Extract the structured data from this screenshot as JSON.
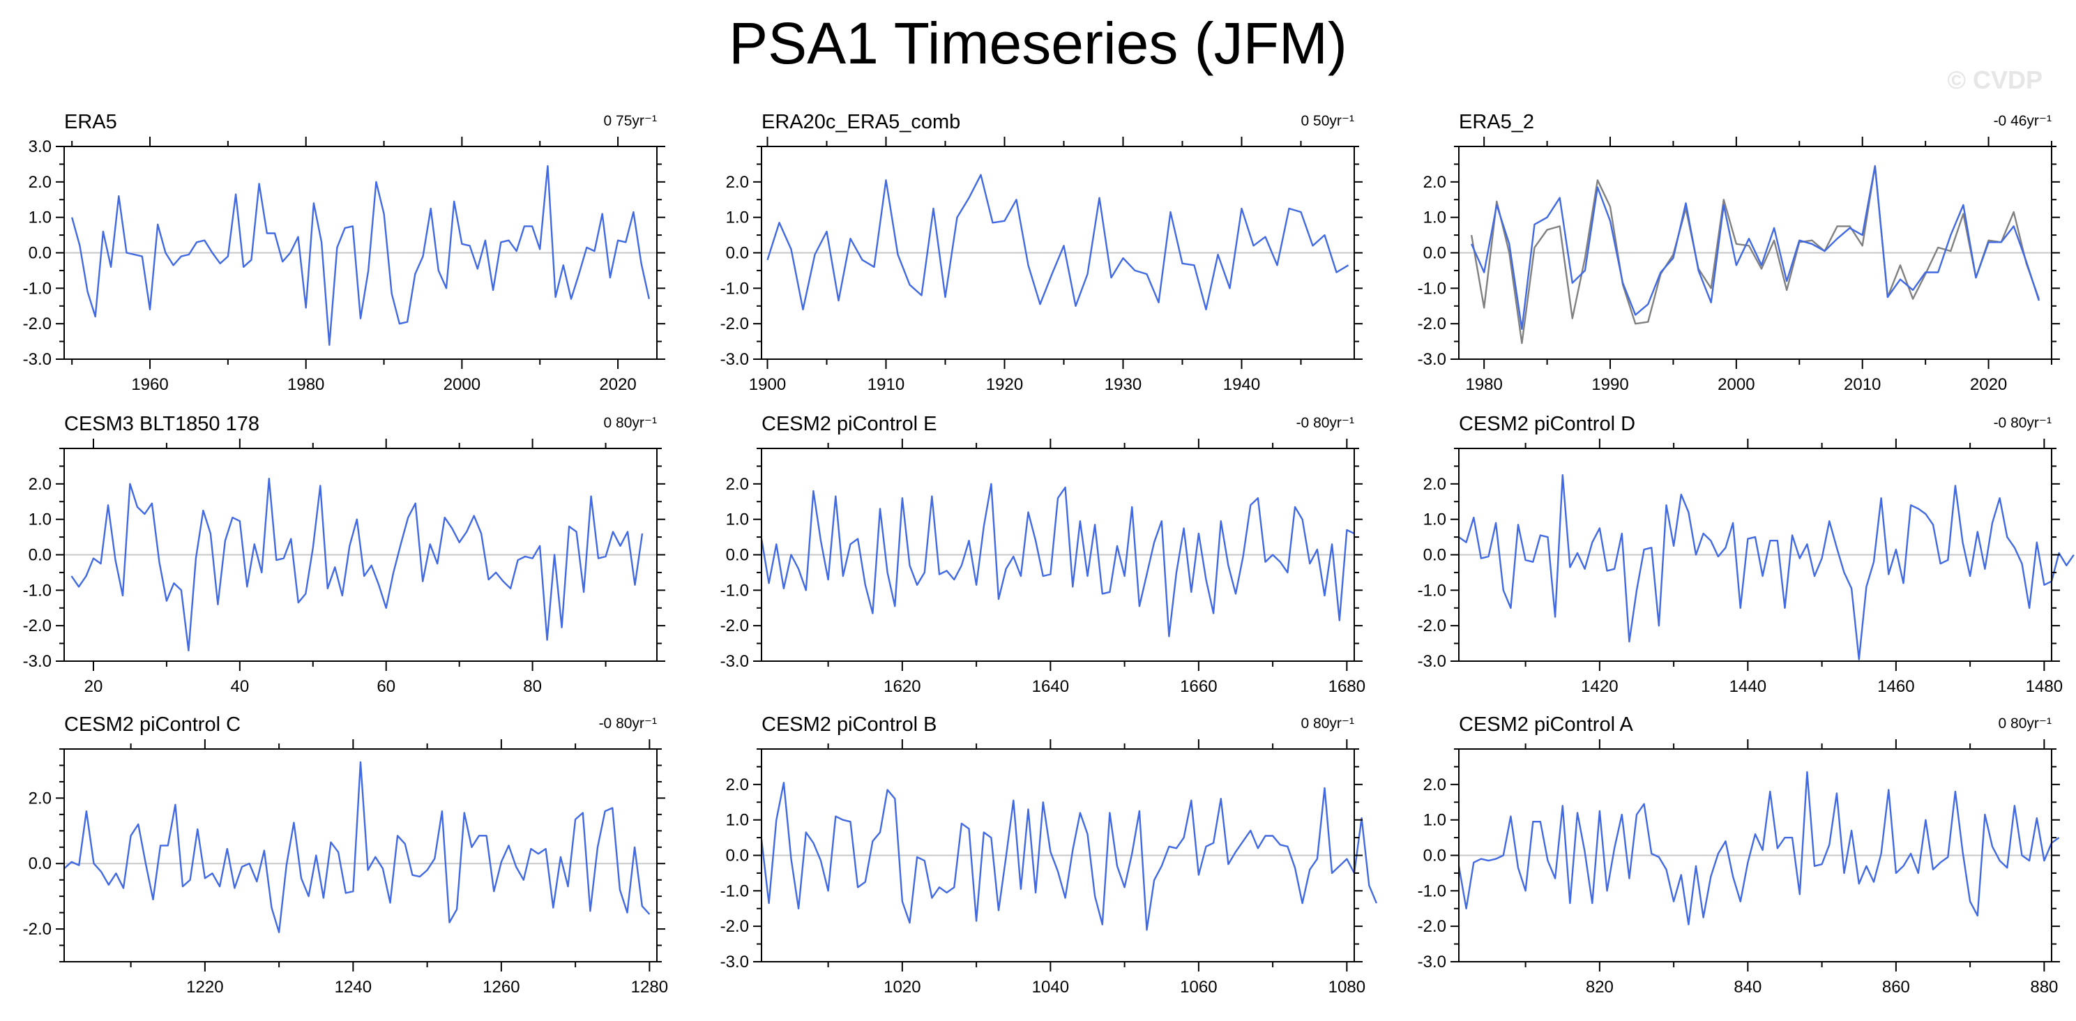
{
  "title": "PSA1 Timeseries (JFM)",
  "watermark": "© CVDP",
  "colors": {
    "series": "#4169e1",
    "reference": "#808080",
    "zero_line": "#c8c8c8",
    "axes": "#000000"
  },
  "chart_data": [
    {
      "type": "line",
      "title": "ERA5",
      "trend_label": "0 75yr⁻¹",
      "xlim": [
        1949,
        2025
      ],
      "ylim": [
        -3,
        3
      ],
      "xticks": [
        1960,
        1980,
        2000,
        2020
      ],
      "yticks": [
        -3,
        -2,
        -1,
        0,
        1,
        2,
        3
      ],
      "x_start": 1950,
      "series": [
        {
          "values": [
            1.0,
            0.2,
            -1.1,
            -1.8,
            0.6,
            -0.4,
            1.6,
            0.0,
            -0.05,
            -0.1,
            -1.6,
            0.8,
            0.0,
            -0.35,
            -0.1,
            -0.05,
            0.3,
            0.35,
            0.0,
            -0.3,
            -0.1,
            1.65,
            -0.4,
            -0.2,
            1.95,
            0.55,
            0.55,
            -0.25,
            0.0,
            0.45,
            -1.55,
            1.4,
            0.3,
            -2.6,
            0.15,
            0.7,
            0.75,
            -1.85,
            -0.5,
            2.0,
            1.1,
            -1.15,
            -2.0,
            -1.95,
            -0.6,
            -0.1,
            1.25,
            -0.5,
            -1.0,
            1.45,
            0.25,
            0.2,
            -0.45,
            0.35,
            -1.05,
            0.3,
            0.35,
            0.05,
            0.75,
            0.75,
            0.1,
            2.45,
            -1.25,
            -0.35,
            -1.3,
            -0.6,
            0.15,
            0.05,
            1.1,
            -0.7,
            0.35,
            0.3,
            1.15,
            -0.3,
            -1.3
          ]
        }
      ]
    },
    {
      "type": "line",
      "title": "ERA20c_ERA5_comb",
      "trend_label": "0 50yr⁻¹",
      "xlim": [
        1899.5,
        1949.5
      ],
      "ylim": [
        -3,
        3
      ],
      "xticks": [
        1900,
        1910,
        1920,
        1930,
        1940
      ],
      "yticks": [
        -3,
        -2,
        -1,
        0,
        1,
        2
      ],
      "x_start": 1900,
      "series": [
        {
          "values": [
            -0.2,
            0.85,
            0.1,
            -1.6,
            -0.05,
            0.6,
            -1.35,
            0.4,
            -0.2,
            -0.4,
            2.05,
            -0.05,
            -0.9,
            -1.2,
            1.25,
            -1.25,
            1.0,
            1.55,
            2.2,
            0.85,
            0.9,
            1.5,
            -0.35,
            -1.45,
            -0.6,
            0.2,
            -1.5,
            -0.6,
            1.55,
            -0.7,
            -0.15,
            -0.5,
            -0.6,
            -1.4,
            1.15,
            -0.3,
            -0.35,
            -1.6,
            -0.05,
            -1.0,
            1.25,
            0.2,
            0.45,
            -0.35,
            1.25,
            1.15,
            0.2,
            0.5,
            -0.55,
            -0.35
          ]
        }
      ]
    },
    {
      "type": "line",
      "title": "ERA5_2",
      "trend_label": "-0 46yr⁻¹",
      "xlim": [
        1978,
        2025
      ],
      "ylim": [
        -3,
        3
      ],
      "xticks": [
        1980,
        1990,
        2000,
        2010,
        2020
      ],
      "yticks": [
        -3,
        -2,
        -1,
        0,
        1,
        2
      ],
      "x_start": 1979,
      "series": [
        {
          "values": [
            0.25,
            -0.55,
            1.35,
            0.25,
            -2.15,
            0.8,
            1.0,
            1.55,
            -0.85,
            -0.5,
            1.85,
            0.9,
            -0.85,
            -1.75,
            -1.45,
            -0.55,
            -0.15,
            1.4,
            -0.5,
            -1.4,
            1.35,
            -0.35,
            0.4,
            -0.35,
            0.7,
            -0.8,
            0.35,
            0.25,
            0.05,
            0.4,
            0.7,
            0.5,
            2.45,
            -1.25,
            -0.75,
            -1.05,
            -0.55,
            -0.55,
            0.5,
            1.35,
            -0.7,
            0.3,
            0.3,
            0.75,
            -0.25,
            -1.35
          ]
        },
        {
          "values": [
            0.5,
            -1.55,
            1.45,
            0.0,
            -2.55,
            0.15,
            0.65,
            0.75,
            -1.85,
            -0.15,
            2.05,
            1.3,
            -0.9,
            -2.0,
            -1.95,
            -0.6,
            -0.05,
            1.25,
            -0.45,
            -1.0,
            1.5,
            0.25,
            0.2,
            -0.45,
            0.35,
            -1.05,
            0.3,
            0.35,
            0.05,
            0.75,
            0.75,
            0.2,
            2.45,
            -1.25,
            -0.35,
            -1.3,
            -0.6,
            0.15,
            0.05,
            1.1,
            -0.7,
            0.35,
            0.3,
            1.15,
            -0.3,
            -1.3
          ]
        }
      ]
    },
    {
      "type": "line",
      "title": "CESM3 BLT1850 178",
      "trend_label": "0 80yr⁻¹",
      "xlim": [
        16,
        97
      ],
      "ylim": [
        -3,
        3
      ],
      "xticks": [
        20,
        40,
        60,
        80
      ],
      "yticks": [
        -3,
        -2,
        -1,
        0,
        1,
        2
      ],
      "x_start": 17,
      "series": [
        {
          "values": [
            -0.6,
            -0.9,
            -0.6,
            -0.1,
            -0.25,
            1.4,
            -0.15,
            -1.15,
            2.0,
            1.35,
            1.15,
            1.45,
            -0.2,
            -1.3,
            -0.8,
            -1.0,
            -2.7,
            -0.1,
            1.25,
            0.6,
            -1.4,
            0.4,
            1.05,
            0.95,
            -0.9,
            0.3,
            -0.5,
            2.15,
            -0.15,
            -0.1,
            0.45,
            -1.35,
            -1.1,
            0.2,
            1.95,
            -0.95,
            -0.35,
            -1.15,
            0.25,
            1.0,
            -0.6,
            -0.3,
            -0.85,
            -1.5,
            -0.5,
            0.3,
            1.05,
            1.45,
            -0.75,
            0.3,
            -0.25,
            1.05,
            0.75,
            0.35,
            0.65,
            1.1,
            0.6,
            -0.7,
            -0.5,
            -0.75,
            -0.95,
            -0.15,
            -0.05,
            -0.1,
            0.25,
            -2.4,
            0.0,
            -2.05,
            0.8,
            0.65,
            -1.05,
            1.65,
            -0.1,
            -0.05,
            0.65,
            0.25,
            0.65,
            -0.85,
            0.6
          ]
        }
      ]
    },
    {
      "type": "line",
      "title": "CESM2 piControl E",
      "trend_label": "-0 80yr⁻¹",
      "xlim": [
        1601,
        1681
      ],
      "ylim": [
        -3,
        3
      ],
      "xticks": [
        1620,
        1640,
        1660,
        1680
      ],
      "yticks": [
        -3,
        -2,
        -1,
        0,
        1,
        2
      ],
      "x_start": 1601,
      "series": [
        {
          "values": [
            0.45,
            -0.8,
            0.3,
            -0.95,
            0.0,
            -0.4,
            -1.0,
            1.8,
            0.4,
            -0.7,
            1.65,
            -0.6,
            0.3,
            0.45,
            -0.85,
            -1.65,
            1.3,
            -0.5,
            -1.45,
            1.6,
            -0.3,
            -0.85,
            -0.5,
            1.65,
            -0.55,
            -0.45,
            -0.7,
            -0.3,
            0.4,
            -0.85,
            0.8,
            2.0,
            -1.25,
            -0.4,
            -0.05,
            -0.6,
            1.2,
            0.4,
            -0.6,
            -0.55,
            1.6,
            1.9,
            -0.9,
            0.95,
            -0.6,
            0.85,
            -1.1,
            -1.05,
            0.25,
            -0.6,
            1.35,
            -1.45,
            -0.55,
            0.35,
            0.95,
            -2.3,
            -0.5,
            0.75,
            -1.05,
            0.6,
            -0.7,
            -1.65,
            0.95,
            -0.3,
            -1.1,
            -0.05,
            1.4,
            1.6,
            -0.2,
            0.0,
            -0.2,
            -0.5,
            1.35,
            1.0,
            -0.25,
            0.15,
            -1.15,
            0.3,
            -1.85,
            0.7,
            0.6
          ]
        }
      ]
    },
    {
      "type": "line",
      "title": "CESM2 piControl D",
      "trend_label": "-0 80yr⁻¹",
      "xlim": [
        1401,
        1481
      ],
      "ylim": [
        -3,
        3
      ],
      "xticks": [
        1420,
        1440,
        1460,
        1480
      ],
      "yticks": [
        -3,
        -2,
        -1,
        0,
        1,
        2
      ],
      "x_start": 1401,
      "series": [
        {
          "values": [
            0.5,
            0.35,
            1.05,
            -0.1,
            -0.05,
            0.9,
            -1.0,
            -1.5,
            0.85,
            -0.15,
            -0.2,
            0.55,
            0.5,
            -1.75,
            2.25,
            -0.35,
            0.05,
            -0.4,
            0.35,
            0.75,
            -0.45,
            -0.4,
            0.6,
            -2.45,
            -1.0,
            0.15,
            0.2,
            -2.0,
            1.4,
            0.25,
            1.7,
            1.2,
            0.0,
            0.6,
            0.4,
            -0.05,
            0.2,
            0.9,
            -1.5,
            0.45,
            0.5,
            -0.6,
            0.4,
            0.4,
            -1.5,
            0.55,
            -0.1,
            0.3,
            -0.6,
            -0.1,
            0.95,
            0.2,
            -0.5,
            -0.95,
            -2.95,
            -0.9,
            -0.2,
            1.6,
            -0.55,
            0.15,
            -0.8,
            1.4,
            1.3,
            1.15,
            0.85,
            -0.25,
            -0.15,
            1.95,
            0.35,
            -0.6,
            0.65,
            -0.4,
            0.9,
            1.6,
            0.5,
            0.2,
            -0.25,
            -1.5,
            0.35,
            -0.85,
            -0.75,
            0.05,
            -0.3,
            0.0
          ]
        }
      ]
    },
    {
      "type": "line",
      "title": "CESM2 piControl C",
      "trend_label": "-0 80yr⁻¹",
      "xlim": [
        1201,
        1281
      ],
      "ylim": [
        -3,
        3.5
      ],
      "xticks": [
        1220,
        1240,
        1260,
        1280
      ],
      "yticks": [
        -2,
        0,
        2
      ],
      "x_start": 1201,
      "series": [
        {
          "values": [
            -0.15,
            0.05,
            -0.05,
            1.6,
            0.0,
            -0.25,
            -0.65,
            -0.3,
            -0.75,
            0.85,
            1.2,
            0.0,
            -1.1,
            0.55,
            0.55,
            1.8,
            -0.7,
            -0.5,
            1.05,
            -0.45,
            -0.3,
            -0.7,
            0.45,
            -0.75,
            -0.1,
            0.0,
            -0.55,
            0.4,
            -1.35,
            -2.1,
            -0.05,
            1.25,
            -0.45,
            -1.0,
            0.25,
            -1.05,
            0.65,
            0.35,
            -0.9,
            -0.85,
            3.1,
            -0.2,
            0.2,
            -0.15,
            -1.2,
            0.85,
            0.6,
            -0.35,
            -0.4,
            -0.2,
            0.15,
            1.6,
            -1.8,
            -1.4,
            1.55,
            0.5,
            0.85,
            0.85,
            -0.85,
            0.05,
            0.55,
            -0.1,
            -0.5,
            0.45,
            0.3,
            0.45,
            -1.35,
            0.2,
            -0.7,
            1.35,
            1.55,
            -1.45,
            0.5,
            1.6,
            1.7,
            -0.8,
            -1.5,
            0.5,
            -1.3,
            -1.55
          ]
        }
      ]
    },
    {
      "type": "line",
      "title": "CESM2 piControl B",
      "trend_label": "0 80yr⁻¹",
      "xlim": [
        1001,
        1081
      ],
      "ylim": [
        -3,
        3
      ],
      "xticks": [
        1020,
        1040,
        1060,
        1080
      ],
      "yticks": [
        -3,
        -2,
        -1,
        0,
        1,
        2
      ],
      "x_start": 1001,
      "series": [
        {
          "values": [
            0.45,
            -1.35,
            1.0,
            2.05,
            -0.1,
            -1.5,
            0.65,
            0.35,
            -0.15,
            -1.0,
            1.1,
            1.0,
            0.95,
            -0.9,
            -0.75,
            0.4,
            0.65,
            1.85,
            1.6,
            -1.3,
            -1.9,
            -0.05,
            -0.15,
            -1.2,
            -0.9,
            -1.05,
            -0.9,
            0.9,
            0.75,
            -1.85,
            0.65,
            0.5,
            -1.55,
            -0.05,
            1.55,
            -0.95,
            1.3,
            -1.05,
            1.5,
            0.1,
            -0.45,
            -1.2,
            0.15,
            1.2,
            0.6,
            -1.15,
            -1.95,
            1.2,
            -0.3,
            -0.9,
            0.05,
            1.25,
            -2.1,
            -0.7,
            -0.3,
            0.25,
            0.2,
            0.5,
            1.55,
            -0.55,
            0.25,
            0.35,
            1.6,
            -0.25,
            0.1,
            0.4,
            0.7,
            0.2,
            0.55,
            0.55,
            0.3,
            0.25,
            -0.35,
            -1.35,
            -0.4,
            -0.1,
            1.9,
            -0.5,
            -0.3,
            -0.1,
            -0.5,
            1.05,
            -0.85,
            -1.35
          ]
        }
      ]
    },
    {
      "type": "line",
      "title": "CESM2 piControl A",
      "trend_label": "0 80yr⁻¹",
      "xlim": [
        801,
        881
      ],
      "ylim": [
        -3,
        3
      ],
      "xticks": [
        820,
        840,
        860,
        880
      ],
      "yticks": [
        -3,
        -2,
        -1,
        0,
        1,
        2
      ],
      "x_start": 801,
      "series": [
        {
          "values": [
            -0.3,
            -1.5,
            -0.2,
            -0.1,
            -0.15,
            -0.1,
            0.0,
            1.1,
            -0.35,
            -1.0,
            0.95,
            0.95,
            -0.15,
            -0.65,
            1.4,
            -1.35,
            1.2,
            0.1,
            -1.35,
            1.25,
            -1.0,
            0.2,
            1.15,
            -0.65,
            1.15,
            1.45,
            0.05,
            -0.05,
            -0.4,
            -1.3,
            -0.55,
            -1.95,
            -0.3,
            -1.75,
            -0.6,
            0.05,
            0.4,
            -0.6,
            -1.3,
            -0.2,
            0.6,
            0.15,
            1.8,
            0.2,
            0.5,
            0.5,
            -1.1,
            2.35,
            -0.3,
            -0.25,
            0.3,
            1.75,
            -0.5,
            0.7,
            -0.8,
            -0.3,
            -0.75,
            0.05,
            1.85,
            -0.5,
            -0.3,
            0.05,
            -0.5,
            1.0,
            -0.4,
            -0.2,
            -0.05,
            1.8,
            0.1,
            -1.3,
            -1.7,
            1.15,
            0.25,
            -0.15,
            -0.35,
            1.4,
            0.0,
            -0.15,
            1.05,
            -0.15,
            0.35,
            0.5
          ]
        }
      ]
    }
  ]
}
